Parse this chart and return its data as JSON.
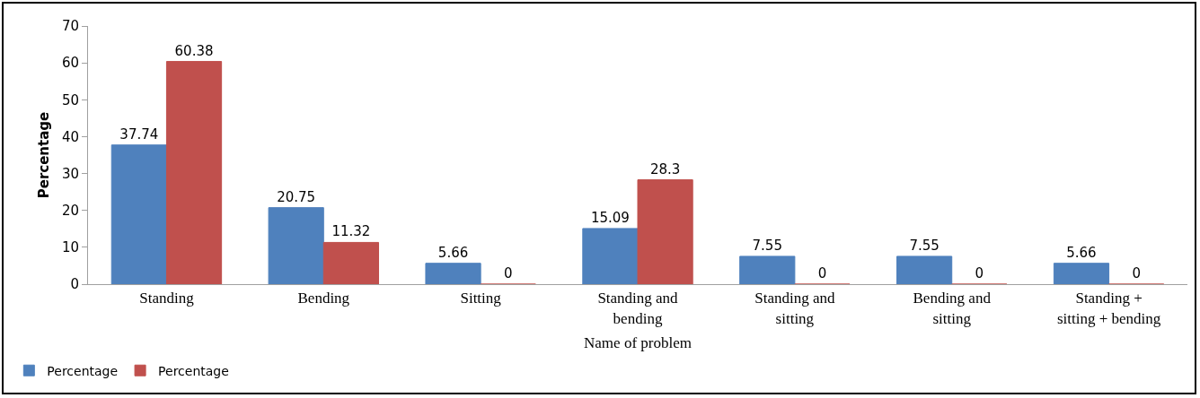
{
  "chart_data": {
    "type": "bar",
    "xlabel": "Name of problem",
    "ylabel": "Percentage",
    "categories": [
      "Standing",
      "Bending",
      "Sitting",
      "Standing and bending",
      "Standing and sitting",
      "Bending and sitting",
      "Standing + sitting + bending"
    ],
    "series": [
      {
        "name": "Percentage",
        "color": "#4f81bd",
        "values": [
          37.74,
          20.75,
          5.66,
          15.09,
          7.55,
          7.55,
          5.66
        ]
      },
      {
        "name": "Percentage",
        "color": "#c0504d",
        "values": [
          60.38,
          11.32,
          0,
          28.3,
          0,
          0,
          0
        ]
      }
    ],
    "ylim": [
      0,
      70
    ],
    "yticks": [
      0,
      10,
      20,
      30,
      40,
      50,
      60,
      70
    ],
    "grid": false,
    "legend": "bottom left",
    "data_labels": true
  }
}
